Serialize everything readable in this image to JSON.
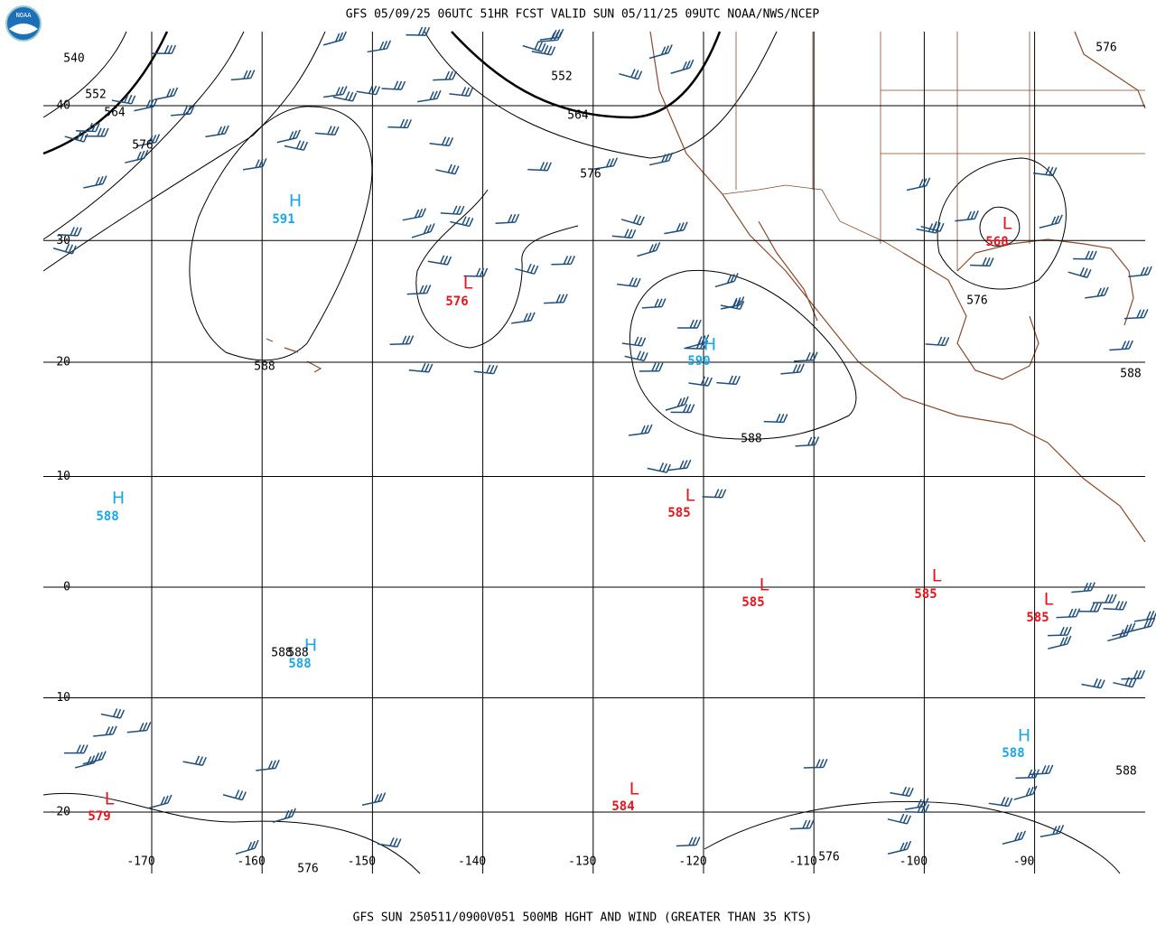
{
  "map": {
    "title": "GFS 05/09/25 06UTC 51HR FCST VALID SUN 05/11/25 09UTC NOAA/NWS/NCEP",
    "footer": "GFS SUN 250511/0900V051 500MB HGHT AND WIND (GREATER THAN 35 KTS)",
    "logo": "NOAA",
    "lat_ticks": [
      40,
      30,
      20,
      10,
      0,
      -10,
      -20
    ],
    "lon_ticks": [
      -170,
      -160,
      -150,
      -140,
      -130,
      -120,
      -110,
      -100,
      -90
    ],
    "centers": [
      {
        "symbol": "H",
        "value": 591
      },
      {
        "symbol": "L",
        "value": 576
      },
      {
        "symbol": "H",
        "value": 590
      },
      {
        "symbol": "L",
        "value": 568
      },
      {
        "symbol": "H",
        "value": 588
      },
      {
        "symbol": "L",
        "value": 585
      },
      {
        "symbol": "L",
        "value": 585
      },
      {
        "symbol": "L",
        "value": 585
      },
      {
        "symbol": "L",
        "value": 585
      },
      {
        "symbol": "H",
        "value": 588
      },
      {
        "symbol": "H",
        "value": 588
      },
      {
        "symbol": "L",
        "value": 584
      },
      {
        "symbol": "L",
        "value": 579
      }
    ],
    "contour_labels": [
      540,
      552,
      564,
      576,
      552,
      564,
      576,
      588,
      588,
      576,
      588,
      576,
      588,
      588,
      588,
      576,
      576
    ]
  }
}
